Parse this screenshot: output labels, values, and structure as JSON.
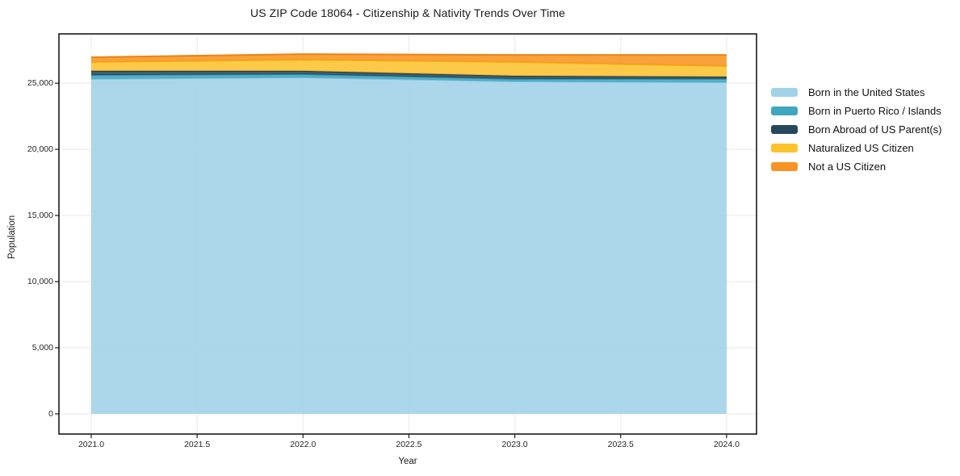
{
  "title": "US ZIP Code 18064 - Citizenship & Nativity Trends Over Time",
  "chart_data": {
    "type": "area",
    "stacked": true,
    "title": "US ZIP Code 18064 - Citizenship & Nativity Trends Over Time",
    "xlabel": "Year",
    "ylabel": "Population",
    "x": [
      2021,
      2022,
      2023,
      2024
    ],
    "series": [
      {
        "name": "Born in the United States",
        "color": "#A1D2E8",
        "line": "#86C2DF",
        "values": [
          25320,
          25440,
          25130,
          25070
        ]
      },
      {
        "name": "Born in Puerto Rico / Islands",
        "color": "#3FA6BE",
        "line": "#3092AB",
        "values": [
          300,
          240,
          190,
          250
        ]
      },
      {
        "name": "Born Abroad of US Parent(s)",
        "color": "#26485D",
        "line": "#1D3A4C",
        "values": [
          310,
          250,
          240,
          180
        ]
      },
      {
        "name": "Naturalized US Citizen",
        "color": "#FCC32F",
        "line": "#F3B30D",
        "values": [
          670,
          850,
          1040,
          790
        ]
      },
      {
        "name": "Not a US Citizen",
        "color": "#F79422",
        "line": "#EE830E",
        "values": [
          360,
          420,
          540,
          850
        ]
      }
    ],
    "x_ticks": [
      2021.0,
      2021.5,
      2022.0,
      2022.5,
      2023.0,
      2023.5,
      2024.0
    ],
    "x_tick_labels": [
      "2021.0",
      "2021.5",
      "2022.0",
      "2022.5",
      "2023.0",
      "2023.5",
      "2024.0"
    ],
    "y_ticks": [
      0,
      5000,
      10000,
      15000,
      20000,
      25000
    ],
    "y_tick_labels": [
      "0",
      "5,000",
      "10,000",
      "15,000",
      "20,000",
      "25,000"
    ],
    "xlim": [
      2020.8475,
      2024.1415
    ],
    "ylim": [
      -1525,
      28731
    ],
    "grid": true,
    "grid_color": "#e9e9e9",
    "axis_color": "#1a1a1a",
    "legend_position": "right-outside"
  }
}
